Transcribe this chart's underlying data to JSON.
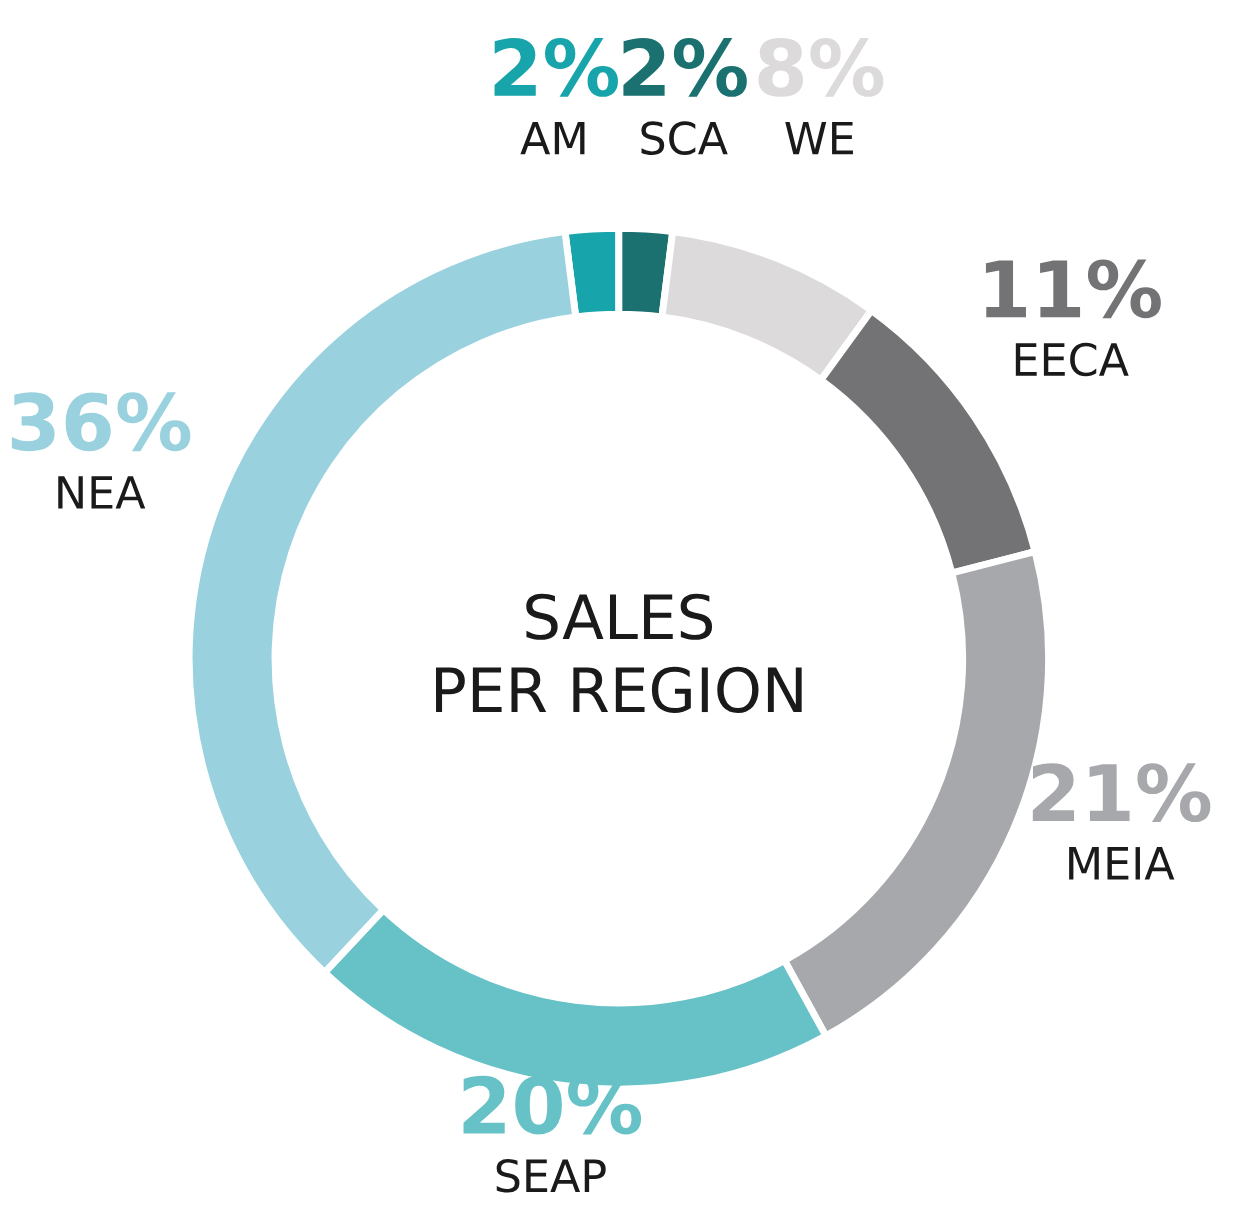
{
  "chart_data": {
    "type": "donut",
    "title": "SALES\nPER REGION",
    "categories": [
      "AM",
      "SCA",
      "WE",
      "EECA",
      "MEIA",
      "SEAP",
      "NEA"
    ],
    "values": [
      2,
      2,
      8,
      11,
      21,
      20,
      36
    ],
    "value_labels": [
      "2%",
      "2%",
      "8%",
      "11%",
      "21%",
      "20%",
      "36%"
    ],
    "colors": [
      "#17a5ab",
      "#1b7170",
      "#dcdadb",
      "#737275",
      "#a7a8ab",
      "#66c2c6",
      "#99d2de"
    ],
    "legend": false
  }
}
